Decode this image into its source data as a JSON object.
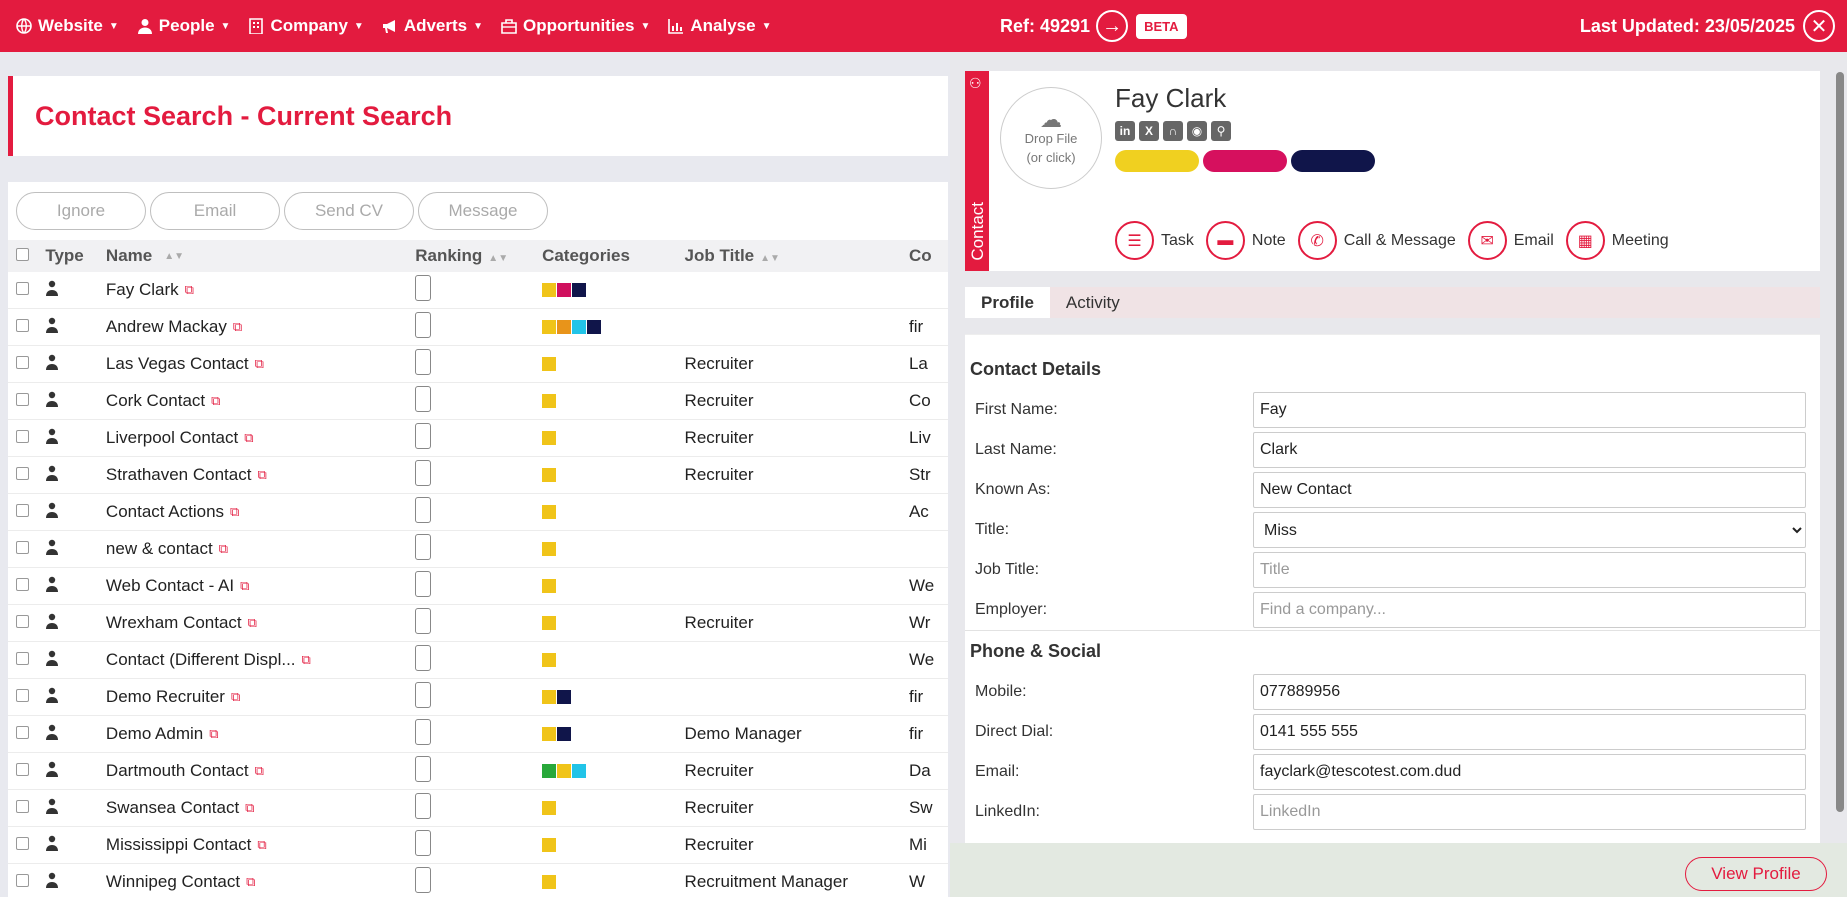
{
  "nav": {
    "items": [
      {
        "label": "Website",
        "icon": "globe-icon"
      },
      {
        "label": "People",
        "icon": "person-icon"
      },
      {
        "label": "Company",
        "icon": "building-icon"
      },
      {
        "label": "Adverts",
        "icon": "megaphone-icon"
      },
      {
        "label": "Opportunities",
        "icon": "briefcase-icon"
      },
      {
        "label": "Analyse",
        "icon": "bar-chart-icon"
      }
    ]
  },
  "page": {
    "title": "Contact Search - Current Search"
  },
  "actions": {
    "ignore": "Ignore",
    "email": "Email",
    "send_cv": "Send CV",
    "message": "Message"
  },
  "table": {
    "headers": {
      "type": "Type",
      "name": "Name",
      "ranking": "Ranking",
      "categories": "Categories",
      "job_title": "Job Title",
      "company": "Co"
    },
    "rows": [
      {
        "name": "Fay Clark",
        "job": "",
        "co": "",
        "cats": [
          "#f0c419",
          "#d0105e",
          "#10154a"
        ]
      },
      {
        "name": "Andrew Mackay",
        "job": "",
        "co": "fir",
        "cats": [
          "#f0c419",
          "#e8941a",
          "#22c4e8",
          "#10154a"
        ]
      },
      {
        "name": "Las Vegas Contact",
        "job": "Recruiter",
        "co": "La",
        "cats": [
          "#f0c419"
        ]
      },
      {
        "name": "Cork Contact",
        "job": "Recruiter",
        "co": "Co",
        "cats": [
          "#f0c419"
        ]
      },
      {
        "name": "Liverpool Contact",
        "job": "Recruiter",
        "co": "Liv",
        "cats": [
          "#f0c419"
        ]
      },
      {
        "name": "Strathaven Contact",
        "job": "Recruiter",
        "co": "Str",
        "cats": [
          "#f0c419"
        ]
      },
      {
        "name": "Contact Actions",
        "job": "",
        "co": "Ac",
        "cats": [
          "#f0c419"
        ]
      },
      {
        "name": "new & contact",
        "job": "",
        "co": "",
        "cats": [
          "#f0c419"
        ]
      },
      {
        "name": "Web Contact - AI",
        "job": "",
        "co": "We",
        "cats": [
          "#f0c419"
        ]
      },
      {
        "name": "Wrexham Contact",
        "job": "Recruiter",
        "co": "Wr",
        "cats": [
          "#f0c419"
        ]
      },
      {
        "name": "Contact (Different Displ...",
        "job": "",
        "co": "We",
        "cats": [
          "#f0c419"
        ]
      },
      {
        "name": "Demo Recruiter",
        "job": "",
        "co": "fir",
        "cats": [
          "#f0c419",
          "#10154a"
        ]
      },
      {
        "name": "Demo Admin",
        "job": "Demo Manager",
        "co": "fir",
        "cats": [
          "#f0c419",
          "#10154a"
        ]
      },
      {
        "name": "Dartmouth Contact",
        "job": "Recruiter",
        "co": "Da",
        "cats": [
          "#28a83a",
          "#f0c419",
          "#22c4e8"
        ]
      },
      {
        "name": "Swansea Contact",
        "job": "Recruiter",
        "co": "Sw",
        "cats": [
          "#f0c419"
        ]
      },
      {
        "name": "Mississippi Contact",
        "job": "Recruiter",
        "co": "Mi",
        "cats": [
          "#f0c419"
        ]
      },
      {
        "name": "Winnipeg Contact",
        "job": "Recruitment Manager",
        "co": "W",
        "cats": [
          "#f0c419"
        ]
      }
    ]
  },
  "panel": {
    "ref": "Ref: 49291",
    "beta": "BETA",
    "last_updated": "Last Updated: 23/05/2025",
    "vtab": "Contact",
    "drop_line1": "Drop File",
    "drop_line2": "(or click)",
    "contact_name": "Fay Clark",
    "tag_colors": [
      "#f0d020",
      "#d6105e",
      "#10154a"
    ],
    "actions": {
      "task": "Task",
      "note": "Note",
      "call": "Call & Message",
      "email": "Email",
      "meeting": "Meeting"
    },
    "tabs": {
      "profile": "Profile",
      "activity": "Activity"
    },
    "sections": {
      "contact": "Contact Details",
      "phone": "Phone & Social"
    },
    "fields": {
      "first_name": {
        "label": "First Name:",
        "value": "Fay"
      },
      "last_name": {
        "label": "Last Name:",
        "value": "Clark"
      },
      "known_as": {
        "label": "Known As:",
        "value": "New Contact"
      },
      "title": {
        "label": "Title:",
        "value": "Miss"
      },
      "job_title": {
        "label": "Job Title:",
        "placeholder": "Title"
      },
      "employer": {
        "label": "Employer:",
        "placeholder": "Find a company..."
      },
      "mobile": {
        "label": "Mobile:",
        "value": "077889956"
      },
      "direct_dial": {
        "label": "Direct Dial:",
        "value": "0141 555 555"
      },
      "email": {
        "label": "Email:",
        "value": "fayclark@tescotest.com.dud"
      },
      "linkedin": {
        "label": "LinkedIn:",
        "placeholder": "LinkedIn"
      }
    },
    "view_profile": "View Profile"
  }
}
